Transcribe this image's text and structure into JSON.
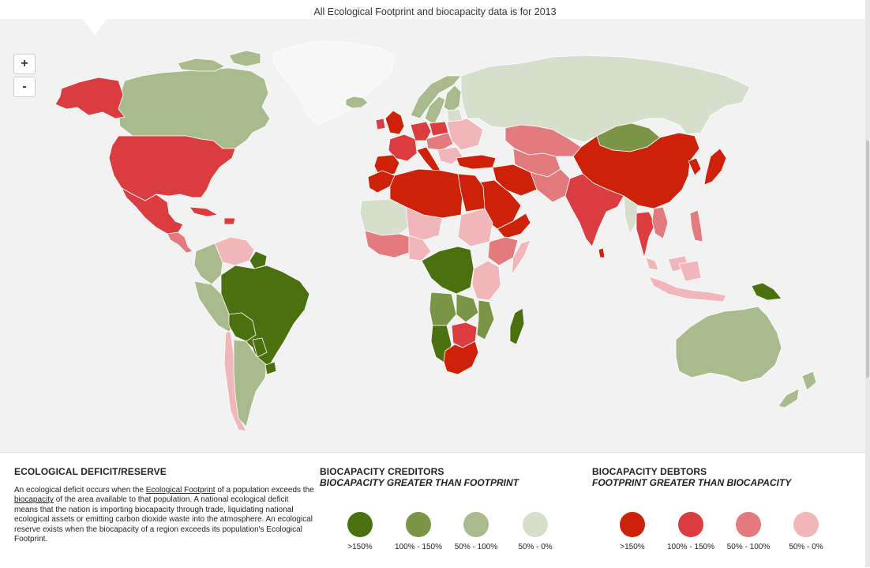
{
  "header": {
    "note": "All Ecological Footprint and biocapacity data is for 2013"
  },
  "zoom": {
    "in_label": "+",
    "out_label": "-"
  },
  "colors": {
    "no_data": "#f7f7f7",
    "ocean": "#f2f2f2",
    "creditor_gt150": "#4b7010",
    "creditor_100_150": "#7a9545",
    "creditor_50_100": "#a9bb8c",
    "creditor_0_50": "#d5dfcc",
    "debtor_gt150": "#cd2209",
    "debtor_100_150": "#db3c40",
    "debtor_50_100": "#e37a7e",
    "debtor_0_50": "#f0b6b9"
  },
  "legend": {
    "deficit": {
      "title": "ECOLOGICAL DEFICIT/RESERVE",
      "text_1": "An ecological deficit occurs when the ",
      "link_footprint": "Ecological Footprint",
      "text_2": " of a population exceeds the ",
      "link_biocapacity": "biocapacity",
      "text_3": " of the area available to that population. A national ecological deficit means that the nation is importing biocapacity through trade, liquidating national ecological assets or emitting carbon dioxide waste into the atmosphere. An ecological reserve exists when the biocapacity of a region exceeds its population's Ecological Footprint."
    },
    "creditors": {
      "title": "BIOCAPACITY CREDITORS",
      "subtitle": "BIOCAPACITY GREATER THAN FOOTPRINT",
      "items": [
        {
          "label": ">150%",
          "color": "#4b7010"
        },
        {
          "label": "100% - 150%",
          "color": "#7a9545"
        },
        {
          "label": "50% - 100%",
          "color": "#a9bb8c"
        },
        {
          "label": "50% - 0%",
          "color": "#d5dfcc"
        }
      ]
    },
    "debtors": {
      "title": "BIOCAPACITY DEBTORS",
      "subtitle": "FOOTPRINT GREATER THAN BIOCAPACITY",
      "items": [
        {
          "label": ">150%",
          "color": "#cd2209"
        },
        {
          "label": "100% - 150%",
          "color": "#db3c40"
        },
        {
          "label": "50% - 100%",
          "color": "#e37a7e"
        },
        {
          "label": "50% - 0%",
          "color": "#f0b6b9"
        }
      ]
    }
  }
}
